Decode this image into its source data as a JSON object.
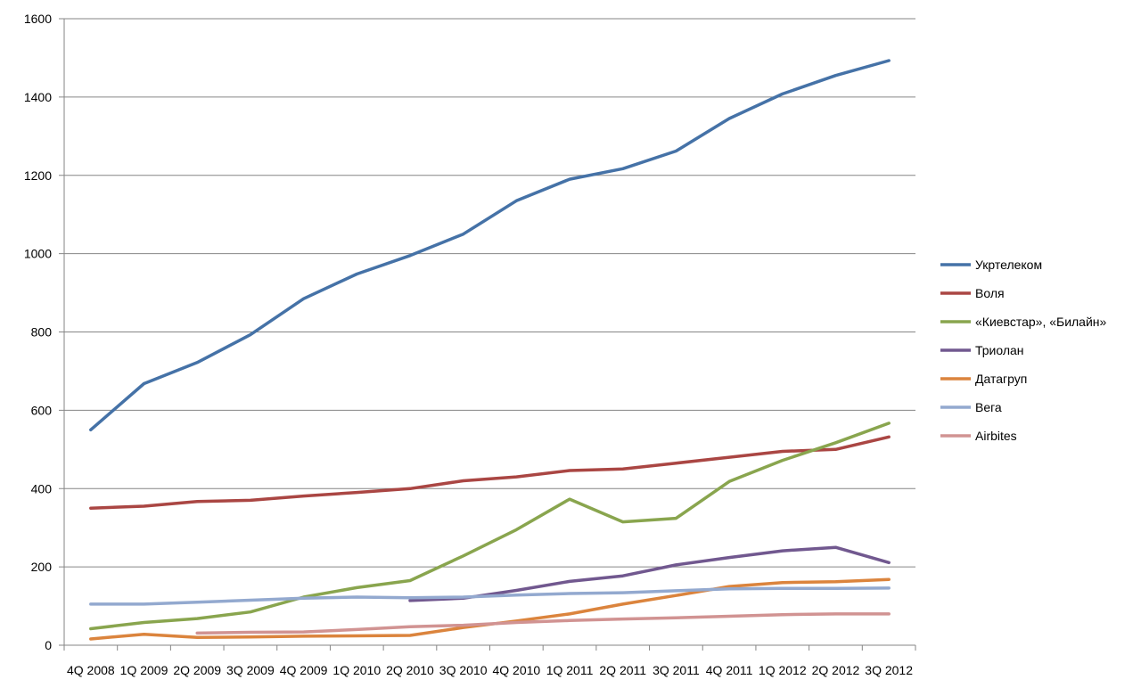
{
  "chart_data": {
    "type": "line",
    "title": "",
    "xlabel": "",
    "ylabel": "",
    "ylim": [
      0,
      1600
    ],
    "yticks": [
      0,
      200,
      400,
      600,
      800,
      1000,
      1200,
      1400,
      1600
    ],
    "grid": true,
    "legend_position": "right",
    "categories": [
      "4Q 2008",
      "1Q 2009",
      "2Q 2009",
      "3Q 2009",
      "4Q 2009",
      "1Q 2010",
      "2Q 2010",
      "3Q 2010",
      "4Q 2010",
      "1Q 2011",
      "2Q 2011",
      "3Q 2011",
      "4Q 2011",
      "1Q 2012",
      "2Q 2012",
      "3Q 2012"
    ],
    "series": [
      {
        "name": "Укртелеком",
        "color": "#4572A7",
        "values": [
          550,
          668,
          722,
          793,
          885,
          948,
          995,
          1050,
          1135,
          1190,
          1217,
          1262,
          1345,
          1408,
          1455,
          1493
        ]
      },
      {
        "name": "Воля",
        "color": "#AA4643",
        "values": [
          350,
          355,
          367,
          370,
          381,
          390,
          400,
          420,
          430,
          446,
          450,
          465,
          480,
          495,
          500,
          532
        ]
      },
      {
        "name": "«Киевстар», «Билайн»",
        "color": "#89A54E",
        "values": [
          42,
          58,
          68,
          85,
          123,
          147,
          165,
          228,
          295,
          373,
          315,
          324,
          418,
          472,
          517,
          567
        ]
      },
      {
        "name": "Триолан",
        "color": "#71588F",
        "values": [
          null,
          null,
          null,
          null,
          null,
          null,
          114,
          120,
          140,
          163,
          177,
          205,
          224,
          241,
          250,
          211
        ]
      },
      {
        "name": "Датагруп",
        "color": "#DB843D",
        "values": [
          16,
          28,
          20,
          21,
          23,
          24,
          25,
          45,
          62,
          80,
          105,
          127,
          150,
          160,
          162,
          168
        ]
      },
      {
        "name": "Вега",
        "color": "#93A9CF",
        "values": [
          105,
          105,
          110,
          115,
          120,
          123,
          121,
          123,
          128,
          132,
          134,
          139,
          144,
          145,
          145,
          146
        ]
      },
      {
        "name": "Airbites",
        "color": "#D19392",
        "values": [
          null,
          null,
          31,
          33,
          34,
          40,
          47,
          51,
          58,
          63,
          67,
          70,
          74,
          78,
          80,
          80
        ]
      }
    ]
  }
}
